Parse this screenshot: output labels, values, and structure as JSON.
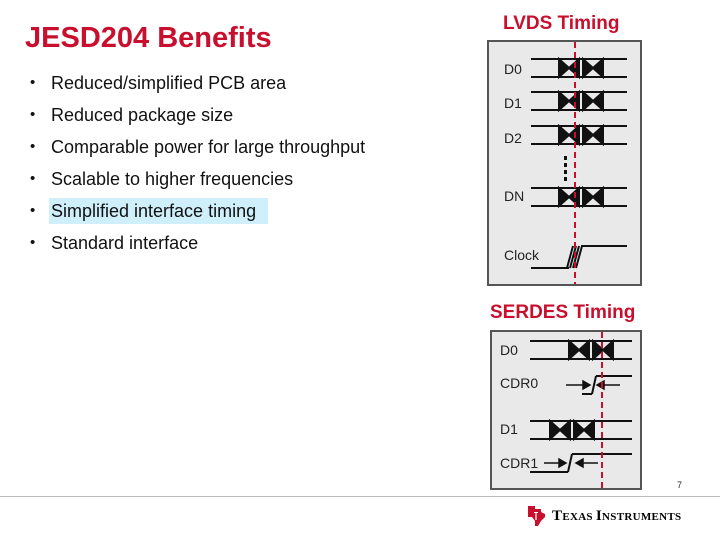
{
  "title": "JESD204 Benefits",
  "bullets": [
    "Reduced/simplified PCB area",
    "Reduced package size",
    "Comparable power for large throughput",
    "Scalable to higher frequencies",
    "Simplified interface timing",
    "Standard interface"
  ],
  "highlighted_bullet": "Simplified interface timing",
  "lvds": {
    "title": "LVDS Timing",
    "signals": [
      "D0",
      "D1",
      "D2",
      "DN",
      "Clock"
    ]
  },
  "serdes": {
    "title": "SERDES Timing",
    "signals": [
      "D0",
      "CDR0",
      "D1",
      "CDR1"
    ]
  },
  "page_number": "7",
  "footer": {
    "logo_part1_initial": "T",
    "logo_part1_rest": "EXAS ",
    "logo_part2_initial": "I",
    "logo_part2_rest": "NSTRUMENTS"
  },
  "colors": {
    "accent": "#c8102e",
    "highlight": "#cfeffb"
  }
}
